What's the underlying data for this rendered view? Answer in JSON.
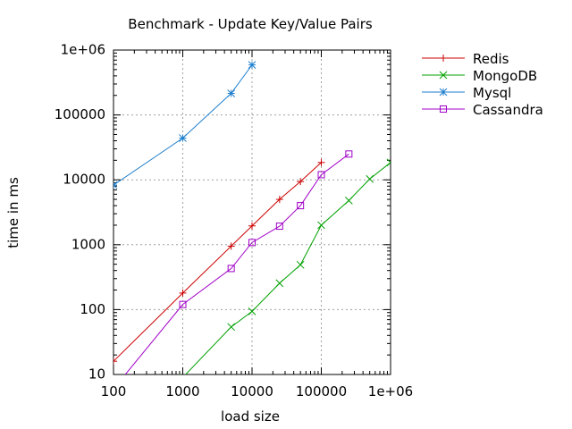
{
  "chart_data": {
    "type": "line",
    "title": "Benchmark - Update Key/Value Pairs",
    "xlabel": "load size",
    "ylabel": "time in ms",
    "xscale": "log",
    "yscale": "log",
    "xlim": [
      100,
      1000000
    ],
    "ylim": [
      10,
      1000000
    ],
    "grid": true,
    "legend_position": "outside-right-top",
    "x_ticks": [
      100,
      1000,
      10000,
      100000,
      1000000
    ],
    "x_tick_labels": [
      "100",
      "1000",
      "10000",
      "100000",
      "1e+06"
    ],
    "y_ticks": [
      10,
      100,
      1000,
      10000,
      100000,
      1000000
    ],
    "y_tick_labels": [
      "10",
      "100",
      "1000",
      "10000",
      "100000",
      "1e+06"
    ],
    "series": [
      {
        "name": "Redis",
        "color": "#cc0000",
        "marker": "plus",
        "x": [
          100,
          1000,
          5000,
          10000,
          25000,
          50000,
          100000
        ],
        "y": [
          16,
          180,
          950,
          1950,
          5000,
          9400,
          18500
        ]
      },
      {
        "name": "MongoDB",
        "color": "#00a000",
        "marker": "cross",
        "x": [
          1000,
          5000,
          10000,
          25000,
          50000,
          100000,
          250000,
          500000,
          1000000
        ],
        "y": [
          9,
          54,
          94,
          255,
          490,
          2000,
          4800,
          10300,
          18500
        ]
      },
      {
        "name": "Mysql",
        "color": "#1e7ecc",
        "marker": "star",
        "x": [
          100,
          1000,
          5000,
          10000
        ],
        "y": [
          8300,
          44000,
          215000,
          590000
        ]
      },
      {
        "name": "Cassandra",
        "color": "#a000c8",
        "marker": "square",
        "x": [
          100,
          1000,
          5000,
          10000,
          25000,
          50000,
          100000,
          250000
        ],
        "y": [
          6,
          120,
          430,
          1080,
          1930,
          4000,
          12000,
          25000
        ]
      }
    ]
  }
}
